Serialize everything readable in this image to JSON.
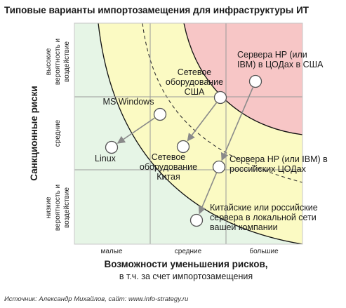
{
  "title": "Типовые варианты импортозамещения для инфраструктуры ИТ",
  "y_axis": {
    "label": "Санкционные риски",
    "levels": [
      [
        "высокие",
        "вероятность и",
        "воздействие"
      ],
      [
        "средние"
      ],
      [
        "низкие",
        "вероятность и",
        "воздействие"
      ]
    ]
  },
  "x_axis": {
    "label_line1": "Возможности уменьшения рисков,",
    "label_line2": "в т.ч. за счет импортозамещения",
    "levels": [
      "малые",
      "средние",
      "большие"
    ]
  },
  "zones": [
    {
      "name": "low-risk-zone",
      "color": "#e6f5e6"
    },
    {
      "name": "medium-risk-zone",
      "color": "#fbfac3"
    },
    {
      "name": "high-risk-zone",
      "color": "#f7c6c6"
    }
  ],
  "nodes": [
    {
      "id": "servers_usa",
      "label": [
        "Сервера HP (или",
        "IBM) в ЦОДах в США"
      ]
    },
    {
      "id": "network_usa",
      "label": [
        "Сетевое",
        "оборудование",
        "США"
      ]
    },
    {
      "id": "ms_windows",
      "label": [
        "MS Windows"
      ]
    },
    {
      "id": "linux",
      "label": [
        "Linux"
      ]
    },
    {
      "id": "network_china",
      "label": [
        "Сетевое",
        "оборудование",
        "Китая"
      ]
    },
    {
      "id": "servers_russia",
      "label": [
        "Сервера HP (или IBM) в",
        "российских ЦОДах"
      ]
    },
    {
      "id": "servers_own",
      "label": [
        "Китайские или российские",
        "сервера в локальной сети",
        "вашей компании"
      ]
    }
  ],
  "transitions": [
    {
      "from": "servers_usa",
      "to": "servers_russia"
    },
    {
      "from": "servers_russia",
      "to": "servers_own"
    },
    {
      "from": "network_usa",
      "to": "network_china"
    },
    {
      "from": "ms_windows",
      "to": "linux"
    }
  ],
  "source": "Источник: Александр Михайлов, сайт: www.info-strategy.ru"
}
